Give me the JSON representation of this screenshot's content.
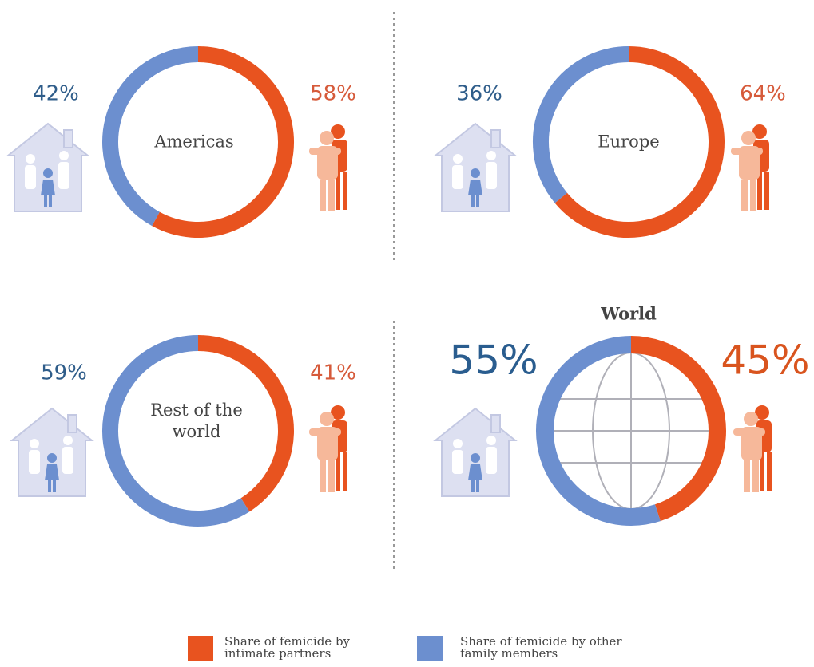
{
  "chart_data": [
    {
      "type": "donut",
      "title": "Americas",
      "values": [
        58,
        42
      ],
      "value_labels": [
        "58%",
        "42%"
      ]
    },
    {
      "type": "donut",
      "title": "Europe",
      "values": [
        64,
        36
      ],
      "value_labels": [
        "64%",
        "36%"
      ]
    },
    {
      "type": "donut",
      "title": "Rest of the world",
      "values": [
        41,
        59
      ],
      "value_labels": [
        "41%",
        "59%"
      ]
    },
    {
      "type": "donut",
      "title": "World",
      "values": [
        45,
        55
      ],
      "value_labels": [
        "45%",
        "55%"
      ]
    }
  ],
  "legend": [
    {
      "name": "Share of femicide by intimate partners",
      "color": "#e8531f"
    },
    {
      "name": "Share of femicide by other family members",
      "color": "#6c8fcf"
    }
  ]
}
